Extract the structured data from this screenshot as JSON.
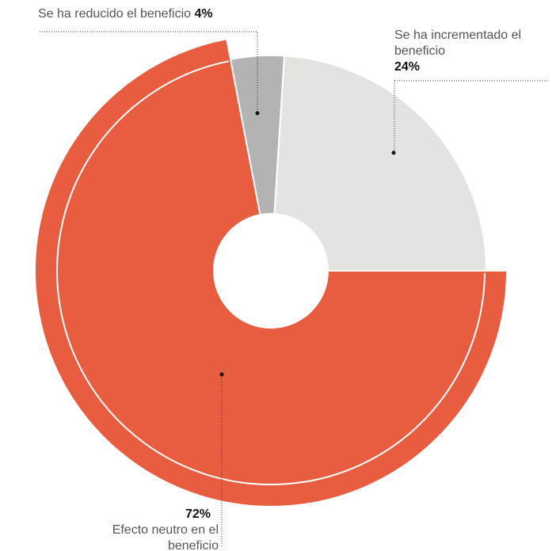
{
  "chart_data": {
    "type": "pie",
    "categories": [
      "Efecto neutro en el beneficio",
      "Se ha reducido el beneficio",
      "Se ha incrementado el beneficio"
    ],
    "values": [
      72,
      4,
      24
    ],
    "value_labels": [
      "72%",
      "4%",
      "24%"
    ],
    "colors": [
      "#e85c3f",
      "#b3b3b3",
      "#e3e3e2"
    ]
  }
}
